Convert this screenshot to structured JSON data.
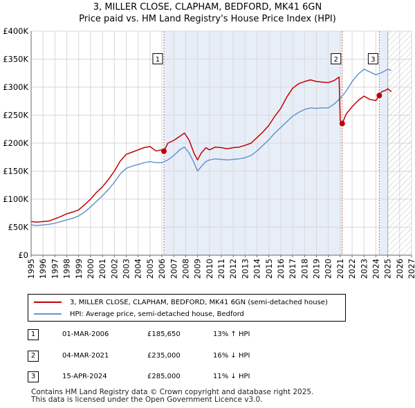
{
  "title_line1": "3, MILLER CLOSE, CLAPHAM, BEDFORD, MK41 6GN",
  "title_line2": "Price paid vs. HM Land Registry's House Price Index (HPI)",
  "legend": {
    "property_label": "3, MILLER CLOSE, CLAPHAM, BEDFORD, MK41 6GN (semi-detached house)",
    "hpi_label": "HPI: Average price, semi-detached house, Bedford"
  },
  "transactions": [
    {
      "num": "1",
      "date": "01-MAR-2006",
      "price": "£185,650",
      "hpi": "13% ↑ HPI"
    },
    {
      "num": "2",
      "date": "04-MAR-2021",
      "price": "£235,000",
      "hpi": "16% ↓ HPI"
    },
    {
      "num": "3",
      "date": "15-APR-2024",
      "price": "£285,000",
      "hpi": "11% ↓ HPI"
    }
  ],
  "footer_line1": "Contains HM Land Registry data © Crown copyright and database right 2025.",
  "footer_line2": "This data is licensed under the Open Government Licence v3.0.",
  "colors": {
    "property": "#c00000",
    "hpi": "#6495cd",
    "shade": "#e8eef8",
    "marker_line": "#e06666"
  },
  "chart_data": {
    "type": "line",
    "xlim": [
      1995,
      2027
    ],
    "ylim": [
      0,
      400000
    ],
    "y_ticks": [
      0,
      50000,
      100000,
      150000,
      200000,
      250000,
      300000,
      350000,
      400000
    ],
    "y_tick_labels": [
      "£0",
      "£50K",
      "£100K",
      "£150K",
      "£200K",
      "£250K",
      "£300K",
      "£350K",
      "£400K"
    ],
    "x_ticks": [
      1995,
      1996,
      1997,
      1998,
      1999,
      2000,
      2001,
      2002,
      2003,
      2004,
      2005,
      2006,
      2007,
      2008,
      2009,
      2010,
      2011,
      2012,
      2013,
      2014,
      2015,
      2016,
      2017,
      2018,
      2019,
      2020,
      2021,
      2022,
      2023,
      2024,
      2025,
      2026,
      2027
    ],
    "x_tick_labels": [
      "1995",
      "1996",
      "1997",
      "1998",
      "1999",
      "2000",
      "2001",
      "2002",
      "2003",
      "2004",
      "2005",
      "2006",
      "2007",
      "2008",
      "2009",
      "2010",
      "2011",
      "2012",
      "2013",
      "2014",
      "2015",
      "2016",
      "2017",
      "2018",
      "2019",
      "2020",
      "2021",
      "2022",
      "2023",
      "2024",
      "2025",
      "2026",
      "2027"
    ],
    "hatched_from": 2025.0,
    "shaded_periods": [
      [
        2006.17,
        2021.17
      ],
      [
        2024.29,
        2025.0
      ]
    ],
    "series": [
      {
        "name": "3, MILLER CLOSE, CLAPHAM, BEDFORD, MK41 6GN (semi-detached house)",
        "x": [
          1995.0,
          1995.5,
          1996.0,
          1996.5,
          1997.0,
          1997.5,
          1998.0,
          1998.5,
          1999.0,
          1999.5,
          2000.0,
          2000.5,
          2001.0,
          2001.5,
          2002.0,
          2002.5,
          2003.0,
          2003.5,
          2004.0,
          2004.5,
          2005.0,
          2005.5,
          2006.0,
          2006.17,
          2006.5,
          2007.0,
          2007.5,
          2007.9,
          2008.3,
          2008.7,
          2009.0,
          2009.3,
          2009.7,
          2010.0,
          2010.5,
          2011.0,
          2011.5,
          2012.0,
          2012.5,
          2013.0,
          2013.5,
          2014.0,
          2014.5,
          2015.0,
          2015.5,
          2016.0,
          2016.5,
          2017.0,
          2017.5,
          2018.0,
          2018.5,
          2019.0,
          2019.5,
          2020.0,
          2020.5,
          2020.9,
          2021.0,
          2021.17,
          2021.5,
          2022.0,
          2022.5,
          2023.0,
          2023.5,
          2024.0,
          2024.29,
          2024.5,
          2024.8,
          2025.0,
          2025.3
        ],
        "y": [
          60000,
          59000,
          60000,
          61000,
          65000,
          69000,
          74000,
          77000,
          81000,
          90000,
          100000,
          112000,
          122000,
          135000,
          150000,
          168000,
          180000,
          184000,
          188000,
          192000,
          194000,
          186000,
          188000,
          185650,
          200000,
          205000,
          212000,
          218000,
          205000,
          182000,
          170000,
          182000,
          192000,
          188000,
          193000,
          192000,
          190000,
          192000,
          193000,
          196000,
          200000,
          210000,
          220000,
          232000,
          248000,
          262000,
          282000,
          298000,
          306000,
          310000,
          313000,
          310000,
          309000,
          308000,
          312000,
          318000,
          240000,
          235000,
          252000,
          265000,
          276000,
          284000,
          278000,
          276000,
          285000,
          292000,
          294000,
          297000,
          292000
        ]
      },
      {
        "name": "HPI: Average price, semi-detached house, Bedford",
        "x": [
          1995.0,
          1995.5,
          1996.0,
          1996.5,
          1997.0,
          1997.5,
          1998.0,
          1998.5,
          1999.0,
          1999.5,
          2000.0,
          2000.5,
          2001.0,
          2001.5,
          2002.0,
          2002.5,
          2003.0,
          2003.5,
          2004.0,
          2004.5,
          2005.0,
          2005.5,
          2006.0,
          2006.5,
          2007.0,
          2007.5,
          2007.9,
          2008.3,
          2008.7,
          2009.0,
          2009.3,
          2009.7,
          2010.0,
          2010.5,
          2011.0,
          2011.5,
          2012.0,
          2012.5,
          2013.0,
          2013.5,
          2014.0,
          2014.5,
          2015.0,
          2015.5,
          2016.0,
          2016.5,
          2017.0,
          2017.5,
          2018.0,
          2018.5,
          2019.0,
          2019.5,
          2020.0,
          2020.5,
          2021.0,
          2021.5,
          2022.0,
          2022.5,
          2023.0,
          2023.5,
          2024.0,
          2024.5,
          2025.0,
          2025.3
        ],
        "y": [
          54000,
          53000,
          54000,
          55000,
          57000,
          60000,
          63000,
          66000,
          70000,
          77000,
          86000,
          96000,
          106000,
          117000,
          130000,
          145000,
          155000,
          159000,
          162000,
          165000,
          167000,
          165000,
          165000,
          170000,
          178000,
          188000,
          193000,
          182000,
          165000,
          150000,
          158000,
          167000,
          170000,
          172000,
          171000,
          170000,
          171000,
          172000,
          174000,
          178000,
          186000,
          196000,
          206000,
          218000,
          228000,
          238000,
          248000,
          255000,
          260000,
          263000,
          262000,
          263000,
          263000,
          270000,
          280000,
          293000,
          310000,
          323000,
          332000,
          327000,
          322000,
          326000,
          332000,
          330000
        ]
      }
    ],
    "sale_markers": [
      {
        "label": "1",
        "x": 2006.17,
        "y": 185650
      },
      {
        "label": "2",
        "x": 2021.17,
        "y": 235000
      },
      {
        "label": "3",
        "x": 2024.29,
        "y": 285000
      }
    ],
    "marker_label_value": 350000
  }
}
